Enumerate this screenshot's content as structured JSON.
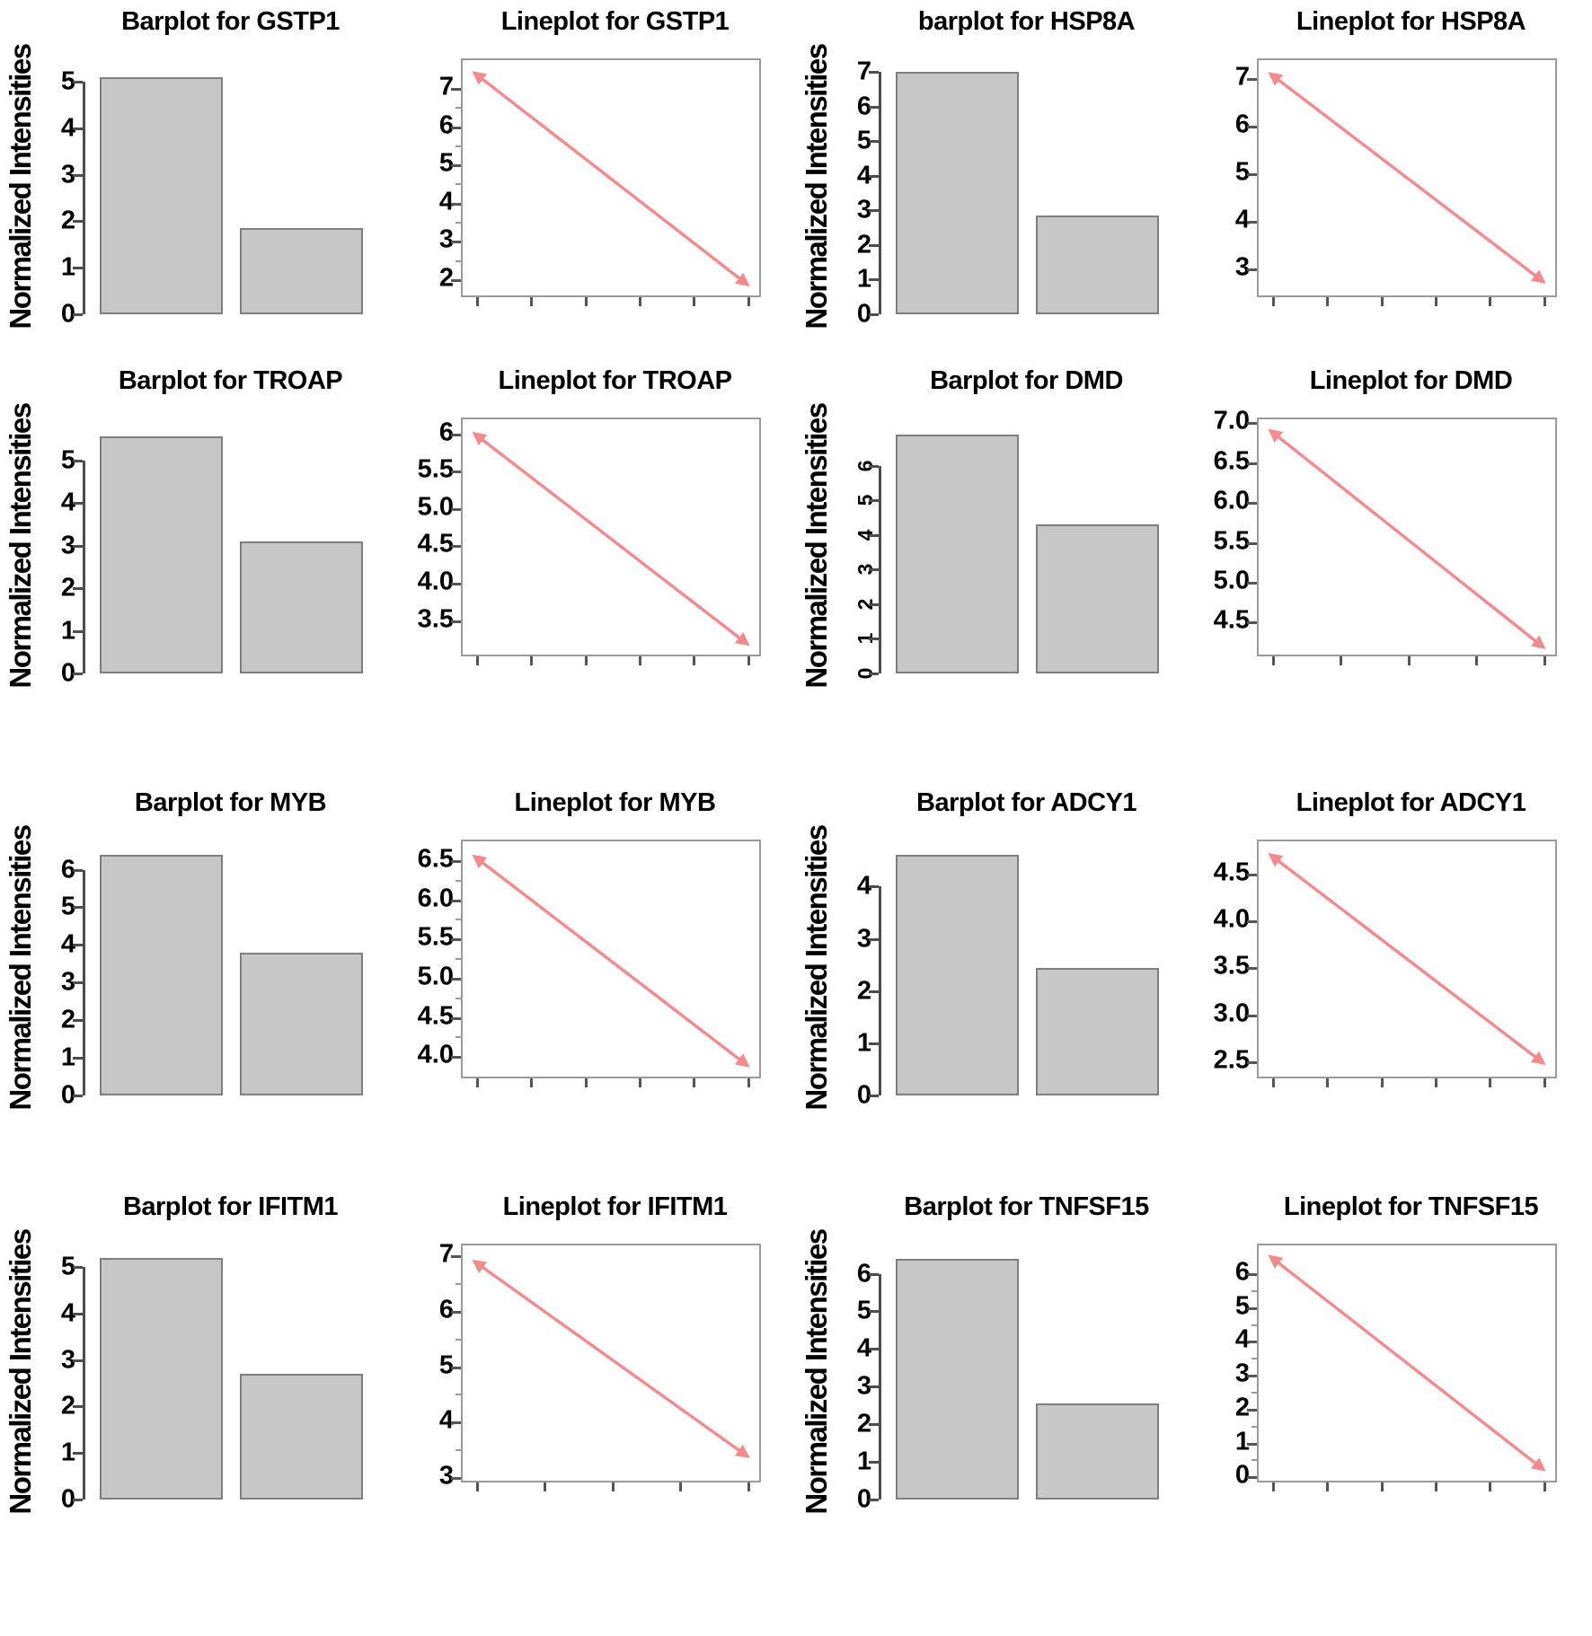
{
  "figure": {
    "y_axis_label": "Normalized Intensities",
    "colors": {
      "background": "#ffffff",
      "bar_fill": "#c7c7c7",
      "bar_border": "#7e7e7e",
      "line": "#f5898c",
      "axis": "#4d4d4d",
      "box_border": "#9b9b9b",
      "text": "#000000"
    }
  },
  "chart_data": [
    {
      "type": "bar",
      "gene": "GSTP1",
      "title": "Barplot for GSTP1",
      "ylabel": "Normalized Intensities",
      "categories": [
        "",
        ""
      ],
      "values": [
        5.1,
        1.85
      ],
      "yticks": [
        "0",
        "1",
        "2",
        "3",
        "4",
        "5"
      ],
      "ylim": [
        0,
        5.5
      ],
      "grid": false,
      "legend": false
    },
    {
      "type": "line",
      "gene": "GSTP1",
      "title": "Lineplot for GSTP1",
      "x": [
        "",
        ""
      ],
      "values": [
        7.4,
        1.9
      ],
      "yticks": [
        "2",
        "3",
        "4",
        "5",
        "6",
        "7"
      ],
      "ylim": [
        1.6,
        7.75
      ],
      "minor_ticks": true,
      "x_tick_count": 6,
      "grid": false,
      "legend": false
    },
    {
      "type": "bar",
      "gene": "HSP8A",
      "title": "barplot for HSP8A",
      "ylabel": "Normalized Intensities",
      "categories": [
        "",
        ""
      ],
      "values": [
        7.0,
        2.85
      ],
      "yticks": [
        "0",
        "1",
        "2",
        "3",
        "4",
        "5",
        "6",
        "7"
      ],
      "ylim": [
        0,
        7.4
      ],
      "grid": false,
      "legend": false
    },
    {
      "type": "line",
      "gene": "HSP8A",
      "title": "Lineplot for HSP8A",
      "x": [
        "",
        ""
      ],
      "values": [
        7.1,
        2.75
      ],
      "yticks": [
        "3",
        "4",
        "5",
        "6",
        "7"
      ],
      "ylim": [
        2.45,
        7.4
      ],
      "minor_ticks": false,
      "x_tick_count": 6,
      "grid": false,
      "legend": false
    },
    {
      "type": "bar",
      "gene": "TROAP",
      "title": "Barplot for TROAP",
      "ylabel": "Normalized Intensities",
      "categories": [
        "",
        ""
      ],
      "values": [
        5.55,
        3.1
      ],
      "yticks": [
        "0",
        "1",
        "2",
        "3",
        "4",
        "5"
      ],
      "ylim": [
        0,
        6.0
      ],
      "grid": false,
      "legend": false
    },
    {
      "type": "line",
      "gene": "TROAP",
      "title": "Lineplot for TROAP",
      "x": [
        "",
        ""
      ],
      "values": [
        6.0,
        3.2
      ],
      "yticks": [
        "3.5",
        "4.0",
        "4.5",
        "5.0",
        "5.5",
        "6"
      ],
      "ylim": [
        3.05,
        6.2
      ],
      "minor_ticks": false,
      "x_tick_count": 6,
      "grid": false,
      "legend": false
    },
    {
      "type": "bar",
      "gene": "DMD",
      "title": "Barplot for DMD",
      "ylabel": "Normalized Intensities",
      "categories": [
        "",
        ""
      ],
      "values": [
        6.9,
        4.3
      ],
      "yticks": [
        "0",
        "1",
        "2",
        "3",
        "4",
        "5",
        "6"
      ],
      "ylim": [
        0,
        7.4
      ],
      "rotated_ticks": true,
      "grid": false,
      "legend": false
    },
    {
      "type": "line",
      "gene": "DMD",
      "title": "Lineplot for DMD",
      "x": [
        "",
        ""
      ],
      "values": [
        6.9,
        4.2
      ],
      "yticks": [
        "4.5",
        "5.0",
        "5.5",
        "6.0",
        "6.5",
        "7.0"
      ],
      "ylim": [
        4.1,
        7.05
      ],
      "minor_ticks": false,
      "x_tick_count": 5,
      "grid": false,
      "legend": false
    },
    {
      "type": "bar",
      "gene": "MYB",
      "title": "Barplot for MYB",
      "ylabel": "Normalized Intensities",
      "categories": [
        "",
        ""
      ],
      "values": [
        6.4,
        3.8
      ],
      "yticks": [
        "0",
        "1",
        "2",
        "3",
        "4",
        "5",
        "6"
      ],
      "ylim": [
        0,
        6.8
      ],
      "grid": false,
      "legend": false
    },
    {
      "type": "line",
      "gene": "MYB",
      "title": "Lineplot for MYB",
      "x": [
        "",
        ""
      ],
      "values": [
        6.55,
        3.9
      ],
      "yticks": [
        "4.0",
        "4.5",
        "5.0",
        "5.5",
        "6.0",
        "6.5"
      ],
      "ylim": [
        3.75,
        6.75
      ],
      "minor_ticks": true,
      "x_tick_count": 6,
      "grid": false,
      "legend": false
    },
    {
      "type": "bar",
      "gene": "ADCY1",
      "title": "Barplot for ADCY1",
      "ylabel": "Normalized Intensities",
      "categories": [
        "",
        ""
      ],
      "values": [
        4.6,
        2.45
      ],
      "yticks": [
        "0",
        "1",
        "2",
        "3",
        "4"
      ],
      "ylim": [
        0,
        4.9
      ],
      "grid": false,
      "legend": false
    },
    {
      "type": "line",
      "gene": "ADCY1",
      "title": "Lineplot for ADCY1",
      "x": [
        "",
        ""
      ],
      "values": [
        4.7,
        2.5
      ],
      "yticks": [
        "2.5",
        "3.0",
        "3.5",
        "4.0",
        "4.5"
      ],
      "ylim": [
        2.35,
        4.85
      ],
      "minor_ticks": false,
      "x_tick_count": 6,
      "grid": false,
      "legend": false
    },
    {
      "type": "bar",
      "gene": "IFITM1",
      "title": "Barplot for IFITM1",
      "ylabel": "Normalized Intensities",
      "categories": [
        "",
        ""
      ],
      "values": [
        5.2,
        2.7
      ],
      "yticks": [
        "0",
        "1",
        "2",
        "3",
        "4",
        "5"
      ],
      "ylim": [
        0,
        5.5
      ],
      "grid": false,
      "legend": false
    },
    {
      "type": "line",
      "gene": "IFITM1",
      "title": "Lineplot for IFITM1",
      "x": [
        "",
        ""
      ],
      "values": [
        6.9,
        3.4
      ],
      "yticks": [
        "3",
        "4",
        "5",
        "6",
        "7"
      ],
      "ylim": [
        2.95,
        7.2
      ],
      "minor_ticks": true,
      "x_tick_count": 5,
      "grid": false,
      "legend": false
    },
    {
      "type": "bar",
      "gene": "TNFSF15",
      "title": "Barplot for TNFSF15",
      "ylabel": "Normalized Intensities",
      "categories": [
        "",
        ""
      ],
      "values": [
        6.4,
        2.55
      ],
      "yticks": [
        "0",
        "1",
        "2",
        "3",
        "4",
        "5",
        "6"
      ],
      "ylim": [
        0,
        6.8
      ],
      "grid": false,
      "legend": false
    },
    {
      "type": "line",
      "gene": "TNFSF15",
      "title": "Lineplot for TNFSF15",
      "x": [
        "",
        ""
      ],
      "values": [
        6.5,
        0.25
      ],
      "yticks": [
        "0",
        "1",
        "2",
        "3",
        "4",
        "5",
        "6"
      ],
      "ylim": [
        -0.1,
        6.85
      ],
      "minor_ticks": true,
      "x_tick_count": 6,
      "grid": false,
      "legend": false
    }
  ]
}
